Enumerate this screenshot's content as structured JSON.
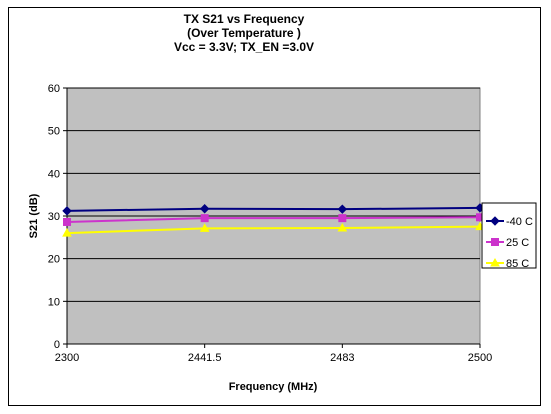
{
  "chart_data": {
    "type": "line",
    "title_lines": [
      "TX S21 vs Frequency",
      "(Over Temperature )",
      "Vcc = 3.3V; TX_EN =3.0V"
    ],
    "xlabel": "Frequency (MHz)",
    "ylabel": "S21 (dB)",
    "categories": [
      "2300",
      "2441.5",
      "2483",
      "2500"
    ],
    "ylim": [
      0,
      60
    ],
    "yticks": [
      "0",
      "10",
      "20",
      "30",
      "40",
      "50",
      "60"
    ],
    "grid": true,
    "plot_background": "#c0c0c0",
    "legend_position": "right",
    "series": [
      {
        "name": "-40 C",
        "values": [
          31.2,
          31.7,
          31.6,
          31.9
        ],
        "color": "#000080",
        "marker": "diamond"
      },
      {
        "name": "25 C",
        "values": [
          28.6,
          29.5,
          29.5,
          29.7
        ],
        "color": "#cc33cc",
        "marker": "square"
      },
      {
        "name": "85 C",
        "values": [
          26.0,
          27.1,
          27.2,
          27.5
        ],
        "color": "#ffff00",
        "marker": "triangle"
      }
    ]
  }
}
